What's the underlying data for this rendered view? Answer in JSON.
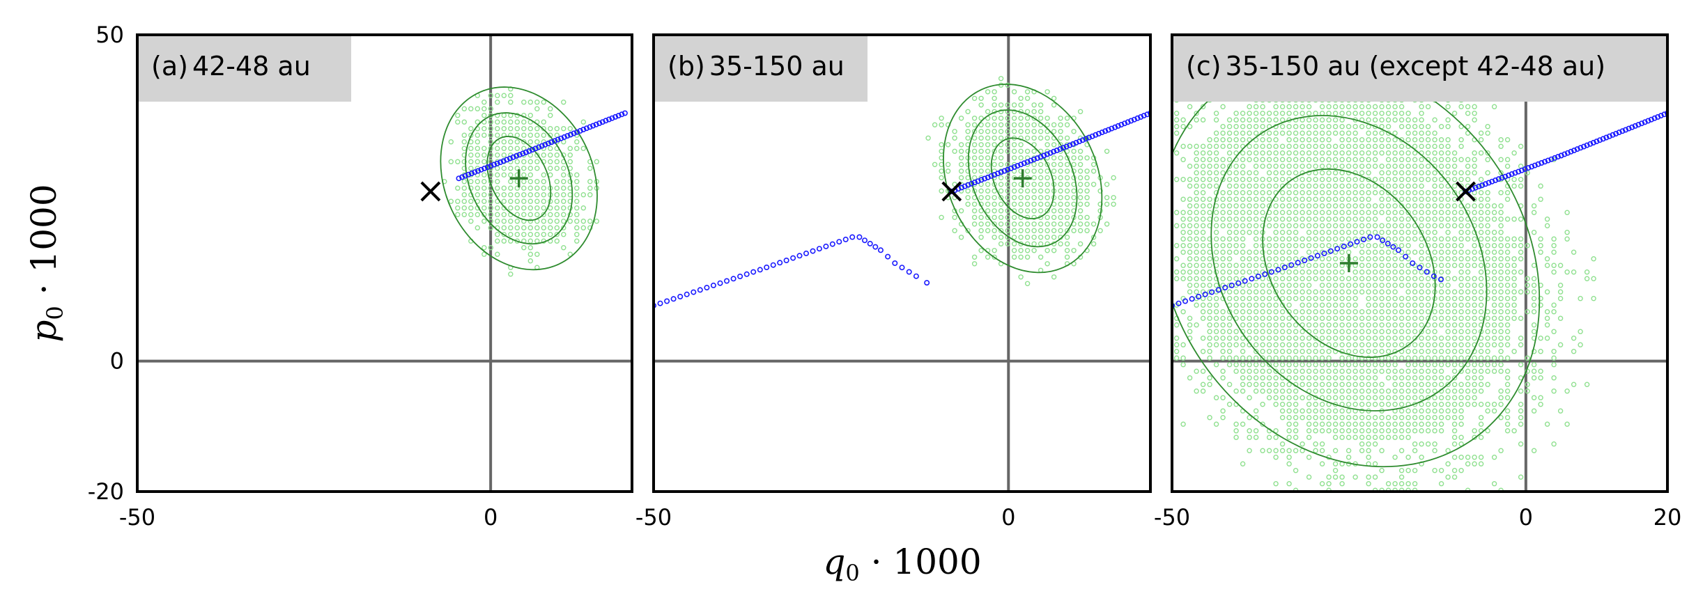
{
  "chart_data": {
    "type": "scatter",
    "xlabel": "q",
    "xlabel_sub": "0",
    "xlabel_suffix": " · 1000",
    "ylabel": "p",
    "ylabel_sub": "0",
    "ylabel_suffix": " · 1000",
    "ylim": [
      -20,
      50
    ],
    "yticks": [
      50,
      0,
      -20
    ],
    "colors": {
      "blue_points": "#1a1aff",
      "green_points": "#8fe08f",
      "green_contours": "#2e8b2e",
      "green_mean": "#2e7d2e",
      "reference_lines": "#666666",
      "label_box": "#d3d3d3",
      "x_marker": "#000000"
    },
    "panels": [
      {
        "label": "(a)",
        "title": "42-48 au",
        "xlim": [
          -50,
          20
        ],
        "xticks": [
          -50,
          0
        ],
        "marker_x": [
          -8.5,
          26
        ],
        "mean_plus": [
          4,
          28
        ],
        "blue_track": [
          [
            -4.5,
            28
          ],
          [
            5,
            32
          ],
          [
            19,
            38
          ]
        ],
        "blue_sparse": [],
        "green_cloud": {
          "center": [
            4,
            28
          ],
          "rx": 9.5,
          "ry": 13,
          "rotate_deg": -25
        },
        "contours": [
          {
            "center": [
              4,
              28
            ],
            "rx": 4,
            "ry": 6.8,
            "rotate_deg": -25
          },
          {
            "center": [
              4,
              28
            ],
            "rx": 7,
            "ry": 10.5,
            "rotate_deg": -25
          },
          {
            "center": [
              4,
              28
            ],
            "rx": 10.5,
            "ry": 14.5,
            "rotate_deg": -25
          }
        ]
      },
      {
        "label": "(b)",
        "title": "35-150 au",
        "xlim": [
          -50,
          20
        ],
        "xticks": [
          -50,
          0
        ],
        "marker_x": [
          -8,
          26
        ],
        "mean_plus": [
          2,
          28
        ],
        "blue_track": [
          [
            -8,
            26
          ],
          [
            5,
            31.5
          ],
          [
            20,
            38
          ]
        ],
        "blue_sparse": [
          [
            -50,
            8.5
          ],
          [
            -35,
            14
          ],
          [
            -22,
            19
          ],
          [
            -21,
            19
          ],
          [
            -18,
            17
          ],
          [
            -16,
            15
          ],
          [
            -13,
            13
          ],
          [
            -11.5,
            12
          ]
        ],
        "green_cloud": {
          "center": [
            2,
            28
          ],
          "rx": 10.5,
          "ry": 14,
          "rotate_deg": -25
        },
        "contours": [
          {
            "center": [
              2,
              28
            ],
            "rx": 4,
            "ry": 6.5,
            "rotate_deg": -25
          },
          {
            "center": [
              2,
              28
            ],
            "rx": 7,
            "ry": 11,
            "rotate_deg": -25
          },
          {
            "center": [
              2,
              28
            ],
            "rx": 10.5,
            "ry": 15,
            "rotate_deg": -25
          }
        ]
      },
      {
        "label": "(c)",
        "title": "35-150 au (except 42-48 au)",
        "xlim": [
          -50,
          20
        ],
        "xticks": [
          -50,
          0,
          20
        ],
        "marker_x": [
          -8.5,
          26
        ],
        "mean_plus": [
          -25,
          15
        ],
        "blue_track": [
          [
            -8.5,
            26
          ],
          [
            5,
            31.5
          ],
          [
            20,
            38
          ]
        ],
        "blue_sparse": [
          [
            -50,
            8.5
          ],
          [
            -35,
            14
          ],
          [
            -22,
            19
          ],
          [
            -21,
            19
          ],
          [
            -18,
            17
          ],
          [
            -16,
            15
          ],
          [
            -13,
            13
          ],
          [
            -12,
            12.5
          ]
        ],
        "green_cloud": {
          "center": [
            -25,
            15
          ],
          "rx": 26,
          "ry": 34,
          "rotate_deg": -35
        },
        "contours": [
          {
            "center": [
              -25,
              15
            ],
            "rx": 11,
            "ry": 15.5,
            "rotate_deg": -35
          },
          {
            "center": [
              -25,
              15
            ],
            "rx": 18,
            "ry": 24,
            "rotate_deg": -35
          },
          {
            "center": [
              -25,
              15
            ],
            "rx": 25,
            "ry": 33,
            "rotate_deg": -35
          }
        ]
      }
    ]
  }
}
